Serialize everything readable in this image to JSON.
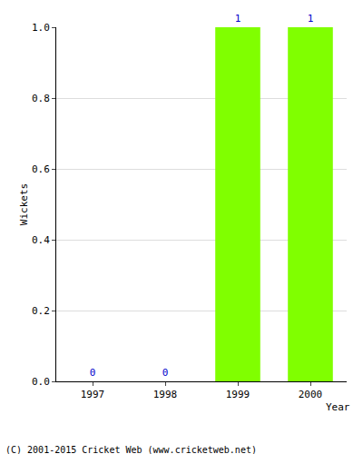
{
  "chart_data": {
    "type": "bar",
    "x_label": "Year",
    "y_label": "Wickets",
    "categories": [
      "1997",
      "1998",
      "1999",
      "2000"
    ],
    "values": [
      0,
      0,
      1,
      1
    ],
    "color": "#80ff00",
    "data_labels": true,
    "ylim": [
      0,
      1
    ],
    "yticks": [
      {
        "value": 0,
        "label": "0.0"
      },
      0.2,
      0.4,
      0.6,
      0.8,
      {
        "value": 1,
        "label": "1.0"
      }
    ],
    "grid": true,
    "annotations": [
      "(C) 2001-2015 Cricket Web (www.cricketweb.net)"
    ]
  }
}
